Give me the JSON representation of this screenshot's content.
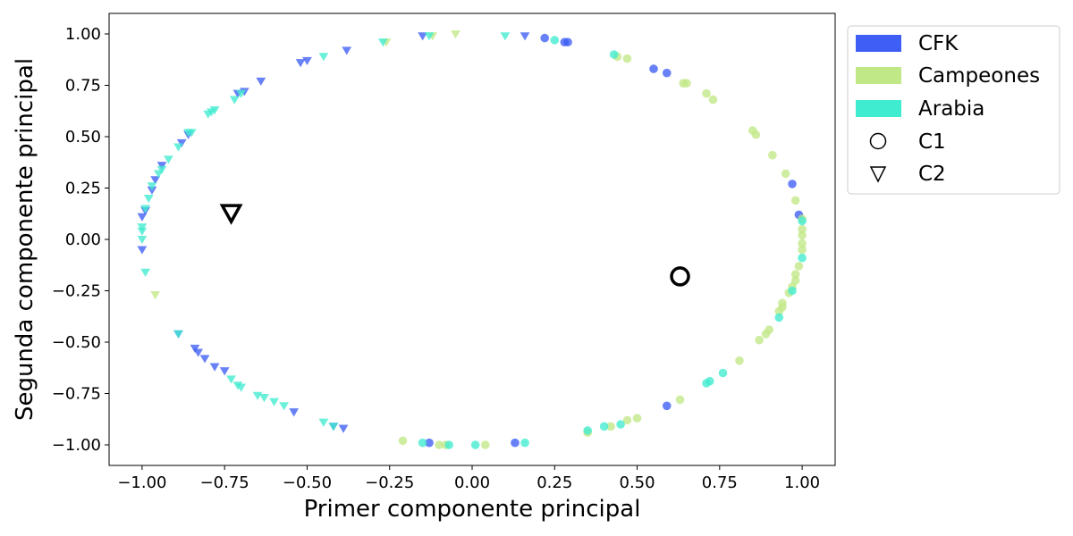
{
  "chart_data": {
    "type": "scatter",
    "xlabel": "Primer componente principal",
    "ylabel": "Segunda componente principal",
    "xlim": [
      -1.1,
      1.1
    ],
    "ylim": [
      -1.1,
      1.1
    ],
    "xticks": [
      -1.0,
      -0.75,
      -0.5,
      -0.25,
      0.0,
      0.25,
      0.5,
      0.75,
      1.0
    ],
    "yticks": [
      -1.0,
      -0.75,
      -0.5,
      -0.25,
      0.0,
      0.25,
      0.5,
      0.75,
      1.0
    ],
    "xtick_labels": [
      "−1.00",
      "−0.75",
      "−0.50",
      "−0.25",
      "0.00",
      "0.25",
      "0.50",
      "0.75",
      "1.00"
    ],
    "ytick_labels": [
      "−1.00",
      "−0.75",
      "−0.50",
      "−0.25",
      "0.00",
      "0.25",
      "0.50",
      "0.75",
      "1.00"
    ],
    "grid": false,
    "legend_position": "outside-right-top",
    "legend": [
      {
        "label": "CFK",
        "kind": "patch",
        "color": "#3e5ef5"
      },
      {
        "label": "Campeones",
        "kind": "patch",
        "color": "#c1e887"
      },
      {
        "label": "Arabia",
        "kind": "patch",
        "color": "#40ecd0"
      },
      {
        "label": "C1",
        "kind": "marker",
        "marker": "circle"
      },
      {
        "label": "C2",
        "kind": "marker",
        "marker": "triangle-down"
      }
    ],
    "series": [
      {
        "name": "CFK",
        "color": "#3e5ef5",
        "points": [
          [
            0.22,
            0.98
          ],
          [
            0.28,
            0.96
          ],
          [
            0.29,
            0.96
          ],
          [
            0.55,
            0.83
          ],
          [
            0.59,
            0.81
          ],
          [
            0.97,
            0.27
          ],
          [
            0.99,
            0.12
          ],
          [
            0.59,
            -0.81
          ],
          [
            0.13,
            -0.99
          ],
          [
            -0.13,
            -0.99
          ]
        ],
        "markers": "circle"
      },
      {
        "name": "CFK",
        "color": "#3e5ef5",
        "points": [
          [
            -0.15,
            0.99
          ],
          [
            0.16,
            0.99
          ],
          [
            -0.38,
            0.92
          ],
          [
            -0.5,
            0.87
          ],
          [
            -0.52,
            0.86
          ],
          [
            -0.64,
            0.77
          ],
          [
            -0.69,
            0.72
          ],
          [
            -0.71,
            0.71
          ],
          [
            -0.86,
            0.51
          ],
          [
            -0.88,
            0.47
          ],
          [
            -0.94,
            0.36
          ],
          [
            -0.96,
            0.29
          ],
          [
            -0.97,
            0.24
          ],
          [
            -0.99,
            0.14
          ],
          [
            -1.0,
            0.11
          ],
          [
            -1.0,
            -0.05
          ],
          [
            -0.89,
            -0.46
          ],
          [
            -0.84,
            -0.53
          ],
          [
            -0.83,
            -0.55
          ],
          [
            -0.81,
            -0.58
          ],
          [
            -0.78,
            -0.62
          ],
          [
            -0.75,
            -0.64
          ],
          [
            -0.54,
            -0.84
          ],
          [
            -0.39,
            -0.92
          ],
          [
            -0.42,
            -0.91
          ]
        ],
        "markers": "triangle-down"
      },
      {
        "name": "Campeones",
        "color": "#c1e887",
        "points": [
          [
            0.44,
            0.89
          ],
          [
            0.47,
            0.88
          ],
          [
            0.65,
            0.76
          ],
          [
            0.64,
            0.76
          ],
          [
            0.71,
            0.71
          ],
          [
            0.73,
            0.68
          ],
          [
            0.85,
            0.53
          ],
          [
            0.86,
            0.51
          ],
          [
            0.91,
            0.41
          ],
          [
            0.95,
            0.32
          ],
          [
            0.98,
            0.19
          ],
          [
            1.0,
            0.1
          ],
          [
            1.0,
            0.05
          ],
          [
            1.0,
            0.02
          ],
          [
            1.0,
            -0.02
          ],
          [
            1.0,
            -0.05
          ],
          [
            0.99,
            -0.13
          ],
          [
            0.98,
            -0.17
          ],
          [
            0.98,
            -0.2
          ],
          [
            0.97,
            -0.23
          ],
          [
            0.96,
            -0.26
          ],
          [
            0.94,
            -0.31
          ],
          [
            0.94,
            -0.33
          ],
          [
            0.93,
            -0.35
          ],
          [
            0.9,
            -0.44
          ],
          [
            0.89,
            -0.46
          ],
          [
            0.87,
            -0.49
          ],
          [
            0.81,
            -0.59
          ],
          [
            0.63,
            -0.78
          ],
          [
            0.5,
            -0.87
          ],
          [
            0.47,
            -0.88
          ],
          [
            0.42,
            -0.91
          ],
          [
            0.35,
            -0.94
          ],
          [
            0.04,
            -1.0
          ],
          [
            -0.08,
            -1.0
          ],
          [
            -0.1,
            -1.0
          ],
          [
            -0.21,
            -0.98
          ]
        ],
        "markers": "circle"
      },
      {
        "name": "Campeones",
        "color": "#c1e887",
        "points": [
          [
            -0.05,
            1.0
          ],
          [
            -0.12,
            0.99
          ],
          [
            -0.26,
            0.96
          ],
          [
            -0.96,
            -0.27
          ]
        ],
        "markers": "triangle-down"
      },
      {
        "name": "Arabia",
        "color": "#40ecd0",
        "points": [
          [
            0.25,
            0.97
          ],
          [
            0.43,
            0.9
          ],
          [
            1.0,
            0.09
          ],
          [
            1.0,
            -0.09
          ],
          [
            0.97,
            -0.25
          ],
          [
            0.93,
            -0.38
          ],
          [
            0.76,
            -0.65
          ],
          [
            0.72,
            -0.69
          ],
          [
            0.71,
            -0.7
          ],
          [
            0.45,
            -0.9
          ],
          [
            0.4,
            -0.91
          ],
          [
            0.35,
            -0.93
          ],
          [
            0.16,
            -0.99
          ],
          [
            0.01,
            -1.0
          ],
          [
            -0.07,
            -1.0
          ],
          [
            -0.15,
            -0.99
          ]
        ],
        "markers": "circle"
      },
      {
        "name": "Arabia",
        "color": "#40ecd0",
        "points": [
          [
            0.1,
            0.99
          ],
          [
            -0.13,
            0.99
          ],
          [
            -0.27,
            0.96
          ],
          [
            -0.45,
            0.89
          ],
          [
            -0.7,
            0.71
          ],
          [
            -0.72,
            0.68
          ],
          [
            -0.78,
            0.63
          ],
          [
            -0.79,
            0.62
          ],
          [
            -0.8,
            0.61
          ],
          [
            -0.85,
            0.52
          ],
          [
            -0.86,
            0.52
          ],
          [
            -0.89,
            0.45
          ],
          [
            -0.92,
            0.39
          ],
          [
            -0.94,
            0.34
          ],
          [
            -0.95,
            0.32
          ],
          [
            -0.97,
            0.26
          ],
          [
            -0.98,
            0.2
          ],
          [
            -0.99,
            0.15
          ],
          [
            -1.0,
            0.06
          ],
          [
            -1.0,
            0.04
          ],
          [
            -1.0,
            0.0
          ],
          [
            -0.99,
            -0.16
          ],
          [
            -0.89,
            -0.46
          ],
          [
            -0.73,
            -0.68
          ],
          [
            -0.71,
            -0.71
          ],
          [
            -0.7,
            -0.72
          ],
          [
            -0.65,
            -0.76
          ],
          [
            -0.63,
            -0.77
          ],
          [
            -0.6,
            -0.79
          ],
          [
            -0.57,
            -0.81
          ],
          [
            -0.45,
            -0.89
          ],
          [
            -0.42,
            -0.91
          ]
        ],
        "markers": "triangle-down"
      }
    ],
    "centroids": [
      {
        "name": "C1",
        "marker": "circle",
        "x": 0.63,
        "y": -0.18
      },
      {
        "name": "C2",
        "marker": "triangle-down",
        "x": -0.73,
        "y": 0.13
      }
    ]
  }
}
